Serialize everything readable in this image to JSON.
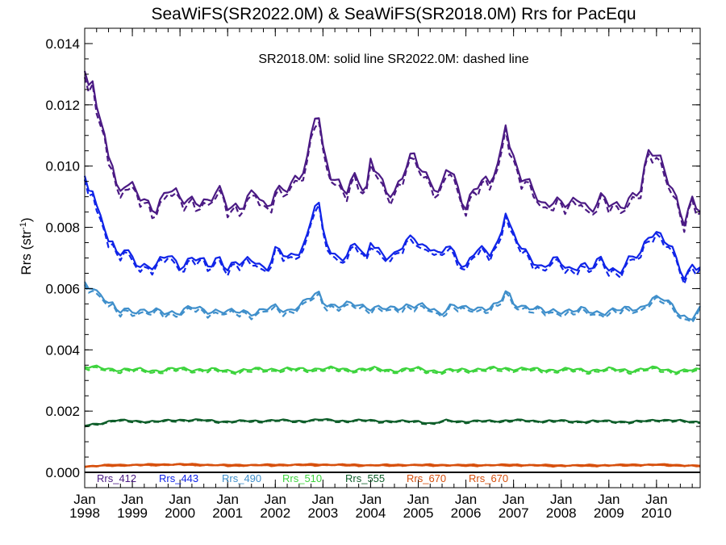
{
  "chart_data": {
    "type": "line",
    "title": "SeaWiFS(SR2022.0M) & SeaWiFS(SR2018.0M)  Rrs for PacEqu",
    "annotation": "SR2018.0M: solid line   SR2022.0M: dashed line",
    "ylabel_main": "Rrs (str",
    "ylabel_sup": "-1",
    "ylabel_tail": ")",
    "ylim": [
      -0.0005,
      0.0145
    ],
    "xlim": [
      1998.0,
      2010.9167
    ],
    "y_ticks": [
      "0.000",
      "0.002",
      "0.004",
      "0.006",
      "0.008",
      "0.010",
      "0.012",
      "0.014"
    ],
    "y_tick_values": [
      0,
      0.002,
      0.004,
      0.006,
      0.008,
      0.01,
      0.012,
      0.014
    ],
    "x_tick_years": [
      1998,
      1999,
      2000,
      2001,
      2002,
      2003,
      2004,
      2005,
      2006,
      2007,
      2008,
      2009,
      2010
    ],
    "x_tick_top": [
      "Jan",
      "Jan",
      "Jan",
      "Jan",
      "Jan",
      "Jan",
      "Jan",
      "Jan",
      "Jan",
      "Jan",
      "Jan",
      "Jan",
      "Jan"
    ],
    "x_tick_bottom": [
      "1998",
      "1999",
      "2000",
      "2001",
      "2002",
      "2003",
      "2004",
      "2005",
      "2006",
      "2007",
      "2008",
      "2009",
      "2010"
    ],
    "grid": false,
    "legend_placement": "bottom-left",
    "zero_line": true,
    "series": [
      {
        "name": "Rrs_412",
        "color": "#4B1A84",
        "anchors": [
          [
            1998.0,
            0.0131
          ],
          [
            1998.08,
            0.0124
          ],
          [
            1998.17,
            0.0127
          ],
          [
            1998.3,
            0.0115
          ],
          [
            1998.5,
            0.0105
          ],
          [
            1998.62,
            0.0101
          ],
          [
            1998.7,
            0.0089
          ],
          [
            1998.8,
            0.0095
          ],
          [
            1999.0,
            0.0092
          ],
          [
            1999.2,
            0.0089
          ],
          [
            1999.5,
            0.0087
          ],
          [
            1999.75,
            0.0092
          ],
          [
            2000.0,
            0.0089
          ],
          [
            2000.3,
            0.009
          ],
          [
            2000.6,
            0.0087
          ],
          [
            2000.8,
            0.0092
          ],
          [
            2001.0,
            0.0088
          ],
          [
            2001.3,
            0.0087
          ],
          [
            2001.6,
            0.0091
          ],
          [
            2001.8,
            0.0086
          ],
          [
            2002.0,
            0.0093
          ],
          [
            2002.3,
            0.0092
          ],
          [
            2002.5,
            0.0096
          ],
          [
            2002.65,
            0.0101
          ],
          [
            2002.82,
            0.0118
          ],
          [
            2002.9,
            0.0119
          ],
          [
            2003.0,
            0.0105
          ],
          [
            2003.2,
            0.0094
          ],
          [
            2003.5,
            0.0093
          ],
          [
            2003.7,
            0.0099
          ],
          [
            2003.9,
            0.0089
          ],
          [
            2004.0,
            0.0101
          ],
          [
            2004.3,
            0.0093
          ],
          [
            2004.5,
            0.0092
          ],
          [
            2004.7,
            0.0098
          ],
          [
            2004.9,
            0.0103
          ],
          [
            2005.1,
            0.0098
          ],
          [
            2005.3,
            0.0096
          ],
          [
            2005.45,
            0.009
          ],
          [
            2005.6,
            0.01
          ],
          [
            2005.8,
            0.0093
          ],
          [
            2006.0,
            0.0087
          ],
          [
            2006.2,
            0.0095
          ],
          [
            2006.5,
            0.0094
          ],
          [
            2006.7,
            0.01
          ],
          [
            2006.83,
            0.0116
          ],
          [
            2006.95,
            0.0105
          ],
          [
            2007.2,
            0.0095
          ],
          [
            2007.4,
            0.0092
          ],
          [
            2007.6,
            0.0087
          ],
          [
            2007.8,
            0.009
          ],
          [
            2008.0,
            0.0088
          ],
          [
            2008.2,
            0.0086
          ],
          [
            2008.4,
            0.009
          ],
          [
            2008.6,
            0.0086
          ],
          [
            2008.8,
            0.009
          ],
          [
            2009.0,
            0.0087
          ],
          [
            2009.2,
            0.0086
          ],
          [
            2009.4,
            0.009
          ],
          [
            2009.7,
            0.0093
          ],
          [
            2009.8,
            0.0103
          ],
          [
            2009.95,
            0.0104
          ],
          [
            2010.1,
            0.0102
          ],
          [
            2010.3,
            0.0095
          ],
          [
            2010.5,
            0.0085
          ],
          [
            2010.6,
            0.008
          ],
          [
            2010.75,
            0.0088
          ],
          [
            2010.92,
            0.0086
          ]
        ]
      },
      {
        "name": "Rrs_443",
        "color": "#1024E8",
        "anchors": [
          [
            1998.0,
            0.0095
          ],
          [
            1998.08,
            0.0091
          ],
          [
            1998.17,
            0.0093
          ],
          [
            1998.3,
            0.0085
          ],
          [
            1998.5,
            0.0077
          ],
          [
            1998.62,
            0.0074
          ],
          [
            1998.7,
            0.0068
          ],
          [
            1998.8,
            0.0073
          ],
          [
            1999.0,
            0.007
          ],
          [
            1999.2,
            0.0068
          ],
          [
            1999.5,
            0.0067
          ],
          [
            1999.75,
            0.0071
          ],
          [
            2000.0,
            0.0068
          ],
          [
            2000.3,
            0.007
          ],
          [
            2000.6,
            0.0067
          ],
          [
            2000.8,
            0.0071
          ],
          [
            2001.0,
            0.0067
          ],
          [
            2001.3,
            0.0068
          ],
          [
            2001.6,
            0.007
          ],
          [
            2001.8,
            0.0066
          ],
          [
            2002.0,
            0.0072
          ],
          [
            2002.3,
            0.007
          ],
          [
            2002.5,
            0.0073
          ],
          [
            2002.65,
            0.0076
          ],
          [
            2002.82,
            0.0087
          ],
          [
            2002.9,
            0.0088
          ],
          [
            2003.0,
            0.0078
          ],
          [
            2003.2,
            0.0071
          ],
          [
            2003.5,
            0.0071
          ],
          [
            2003.7,
            0.0075
          ],
          [
            2003.9,
            0.0068
          ],
          [
            2004.0,
            0.0076
          ],
          [
            2004.3,
            0.0071
          ],
          [
            2004.5,
            0.007
          ],
          [
            2004.7,
            0.0074
          ],
          [
            2004.9,
            0.0078
          ],
          [
            2005.1,
            0.0074
          ],
          [
            2005.3,
            0.0073
          ],
          [
            2005.45,
            0.0069
          ],
          [
            2005.6,
            0.0075
          ],
          [
            2005.8,
            0.0071
          ],
          [
            2006.0,
            0.0067
          ],
          [
            2006.2,
            0.0072
          ],
          [
            2006.5,
            0.0072
          ],
          [
            2006.7,
            0.0076
          ],
          [
            2006.83,
            0.0086
          ],
          [
            2006.95,
            0.0078
          ],
          [
            2007.2,
            0.0072
          ],
          [
            2007.4,
            0.007
          ],
          [
            2007.6,
            0.0067
          ],
          [
            2007.8,
            0.0069
          ],
          [
            2008.0,
            0.0068
          ],
          [
            2008.2,
            0.0066
          ],
          [
            2008.4,
            0.0069
          ],
          [
            2008.6,
            0.0066
          ],
          [
            2008.8,
            0.0069
          ],
          [
            2009.0,
            0.0067
          ],
          [
            2009.2,
            0.0066
          ],
          [
            2009.4,
            0.0069
          ],
          [
            2009.7,
            0.0071
          ],
          [
            2009.8,
            0.0077
          ],
          [
            2009.95,
            0.0079
          ],
          [
            2010.1,
            0.0078
          ],
          [
            2010.3,
            0.0073
          ],
          [
            2010.5,
            0.0066
          ],
          [
            2010.6,
            0.0062
          ],
          [
            2010.75,
            0.0069
          ],
          [
            2010.92,
            0.0067
          ]
        ]
      },
      {
        "name": "Rrs_490",
        "color": "#3F8FCB",
        "anchors": [
          [
            1998.0,
            0.0062
          ],
          [
            1998.08,
            0.0061
          ],
          [
            1998.17,
            0.0061
          ],
          [
            1998.3,
            0.0058
          ],
          [
            1998.5,
            0.0055
          ],
          [
            1998.62,
            0.0054
          ],
          [
            1998.7,
            0.0052
          ],
          [
            1998.8,
            0.0054
          ],
          [
            1999.0,
            0.0053
          ],
          [
            1999.3,
            0.0052
          ],
          [
            1999.6,
            0.0053
          ],
          [
            2000.0,
            0.0052
          ],
          [
            2000.3,
            0.0054
          ],
          [
            2000.6,
            0.0053
          ],
          [
            2001.0,
            0.0052
          ],
          [
            2001.3,
            0.0053
          ],
          [
            2001.6,
            0.0052
          ],
          [
            2002.0,
            0.0054
          ],
          [
            2002.3,
            0.0053
          ],
          [
            2002.6,
            0.0055
          ],
          [
            2002.9,
            0.0059
          ],
          [
            2003.0,
            0.0056
          ],
          [
            2003.3,
            0.0054
          ],
          [
            2003.7,
            0.0055
          ],
          [
            2004.0,
            0.0054
          ],
          [
            2004.4,
            0.0053
          ],
          [
            2004.8,
            0.0055
          ],
          [
            2005.1,
            0.0054
          ],
          [
            2005.45,
            0.0052
          ],
          [
            2005.7,
            0.0055
          ],
          [
            2006.0,
            0.0053
          ],
          [
            2006.4,
            0.0054
          ],
          [
            2006.7,
            0.0055
          ],
          [
            2006.85,
            0.0059
          ],
          [
            2007.0,
            0.0055
          ],
          [
            2007.4,
            0.0054
          ],
          [
            2007.7,
            0.0052
          ],
          [
            2008.0,
            0.0053
          ],
          [
            2008.4,
            0.0053
          ],
          [
            2008.7,
            0.0052
          ],
          [
            2009.0,
            0.0053
          ],
          [
            2009.4,
            0.0053
          ],
          [
            2009.7,
            0.0054
          ],
          [
            2009.9,
            0.0057
          ],
          [
            2010.2,
            0.0056
          ],
          [
            2010.5,
            0.0052
          ],
          [
            2010.7,
            0.005
          ],
          [
            2010.92,
            0.0053
          ]
        ]
      },
      {
        "name": "Rrs_510",
        "color": "#3DD43D",
        "anchors": [
          [
            1998.0,
            0.00345
          ],
          [
            1998.5,
            0.00338
          ],
          [
            1999.0,
            0.00335
          ],
          [
            1999.5,
            0.00333
          ],
          [
            2000.0,
            0.00338
          ],
          [
            2000.5,
            0.00336
          ],
          [
            2001.0,
            0.00332
          ],
          [
            2001.5,
            0.00335
          ],
          [
            2002.0,
            0.00338
          ],
          [
            2002.5,
            0.00336
          ],
          [
            2003.0,
            0.0034
          ],
          [
            2003.5,
            0.00336
          ],
          [
            2004.0,
            0.00338
          ],
          [
            2004.5,
            0.00334
          ],
          [
            2005.0,
            0.00338
          ],
          [
            2005.5,
            0.0033
          ],
          [
            2006.0,
            0.00336
          ],
          [
            2006.5,
            0.00338
          ],
          [
            2007.0,
            0.0034
          ],
          [
            2007.5,
            0.00335
          ],
          [
            2008.0,
            0.00336
          ],
          [
            2008.5,
            0.00334
          ],
          [
            2009.0,
            0.00336
          ],
          [
            2009.5,
            0.00334
          ],
          [
            2010.0,
            0.0034
          ],
          [
            2010.5,
            0.0033
          ],
          [
            2010.92,
            0.00335
          ]
        ]
      },
      {
        "name": "Rrs_555",
        "color": "#0E5E2A",
        "anchors": [
          [
            1998.0,
            0.00152
          ],
          [
            1998.3,
            0.0016
          ],
          [
            1998.6,
            0.0017
          ],
          [
            1999.0,
            0.00168
          ],
          [
            1999.5,
            0.00166
          ],
          [
            2000.0,
            0.00172
          ],
          [
            2000.5,
            0.0017
          ],
          [
            2001.0,
            0.00166
          ],
          [
            2001.5,
            0.00168
          ],
          [
            2002.0,
            0.0017
          ],
          [
            2002.5,
            0.00168
          ],
          [
            2003.0,
            0.00172
          ],
          [
            2003.5,
            0.00168
          ],
          [
            2004.0,
            0.0017
          ],
          [
            2004.5,
            0.00166
          ],
          [
            2005.0,
            0.00168
          ],
          [
            2005.3,
            0.00158
          ],
          [
            2005.6,
            0.0017
          ],
          [
            2006.0,
            0.00166
          ],
          [
            2006.5,
            0.00168
          ],
          [
            2007.0,
            0.0017
          ],
          [
            2007.5,
            0.00168
          ],
          [
            2008.0,
            0.00168
          ],
          [
            2008.5,
            0.00166
          ],
          [
            2009.0,
            0.00168
          ],
          [
            2009.5,
            0.00164
          ],
          [
            2010.0,
            0.00172
          ],
          [
            2010.5,
            0.00168
          ],
          [
            2010.92,
            0.00165
          ]
        ]
      },
      {
        "name": "Rrs_670",
        "color": "#D7500D",
        "anchors": [
          [
            1998.0,
            0.0002
          ],
          [
            1998.5,
            0.00024
          ],
          [
            1999.0,
            0.00025
          ],
          [
            2000.0,
            0.00027
          ],
          [
            2001.0,
            0.00024
          ],
          [
            2002.0,
            0.00025
          ],
          [
            2003.0,
            0.00026
          ],
          [
            2004.0,
            0.00024
          ],
          [
            2005.0,
            0.00025
          ],
          [
            2006.0,
            0.00024
          ],
          [
            2007.0,
            0.00025
          ],
          [
            2008.0,
            0.00023
          ],
          [
            2009.0,
            0.00024
          ],
          [
            2010.0,
            0.00026
          ],
          [
            2010.92,
            0.00022
          ]
        ]
      },
      {
        "name": "Rrs_670",
        "color": "#D7500D",
        "anchors": [
          [
            1998.0,
            0.00018
          ],
          [
            1998.5,
            0.00022
          ],
          [
            1999.0,
            0.00023
          ],
          [
            2000.0,
            0.00025
          ],
          [
            2001.0,
            0.00022
          ],
          [
            2002.0,
            0.00023
          ],
          [
            2003.0,
            0.00024
          ],
          [
            2004.0,
            0.00022
          ],
          [
            2005.0,
            0.00023
          ],
          [
            2006.0,
            0.00022
          ],
          [
            2007.0,
            0.00023
          ],
          [
            2008.0,
            0.00021
          ],
          [
            2009.0,
            0.00022
          ],
          [
            2010.0,
            0.00024
          ],
          [
            2010.92,
            0.0002
          ]
        ]
      }
    ]
  }
}
